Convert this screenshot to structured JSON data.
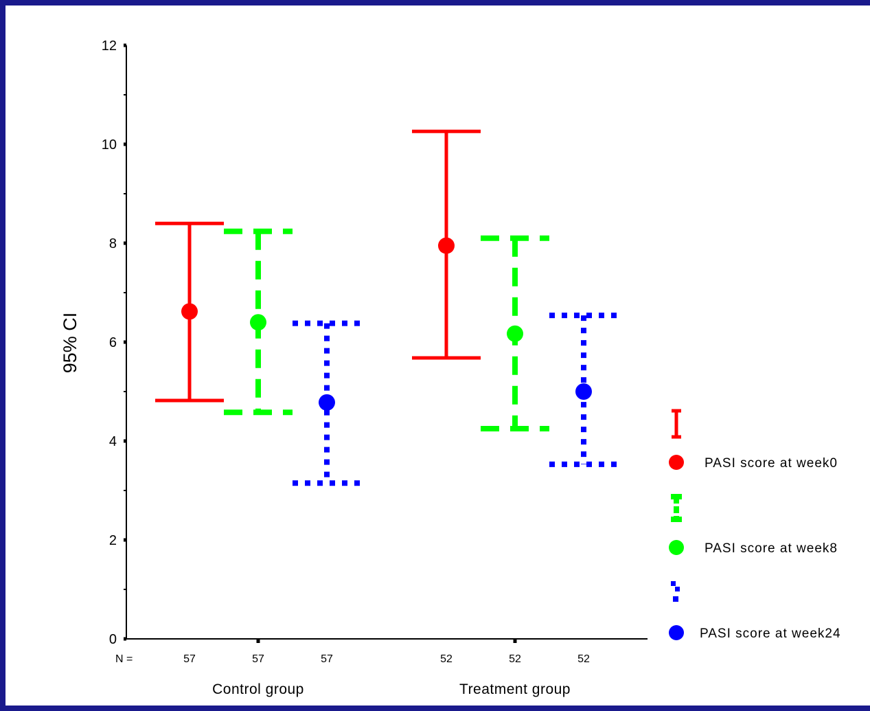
{
  "chart_data": {
    "type": "errorbar",
    "ylabel": "95% CI",
    "ylim": [
      0,
      12
    ],
    "y_ticks": [
      "0",
      "2",
      "4",
      "6",
      "8",
      "10",
      "12"
    ],
    "groups": [
      "Control group",
      "Treatment group"
    ],
    "n_label": "N =",
    "series": [
      {
        "name": "PASI score at week0",
        "color": "#ff0000",
        "line_style": "solid",
        "n": [
          "57",
          "52"
        ],
        "mean": [
          6.62,
          7.95
        ],
        "lower": [
          4.82,
          5.68
        ],
        "upper": [
          8.4,
          10.26
        ]
      },
      {
        "name": "PASI score at week8",
        "color": "#00ff00",
        "line_style": "dashed",
        "n": [
          "57",
          "52"
        ],
        "mean": [
          6.4,
          6.17
        ],
        "lower": [
          4.58,
          4.25
        ],
        "upper": [
          8.24,
          8.1
        ]
      },
      {
        "name": "PASI score at week24",
        "color": "#0000ff",
        "line_style": "dotted",
        "n": [
          "57",
          "52"
        ],
        "mean": [
          4.78,
          5.0
        ],
        "lower": [
          3.15,
          3.53
        ],
        "upper": [
          6.38,
          6.54
        ]
      }
    ],
    "legend_position": "right",
    "grid": false
  }
}
